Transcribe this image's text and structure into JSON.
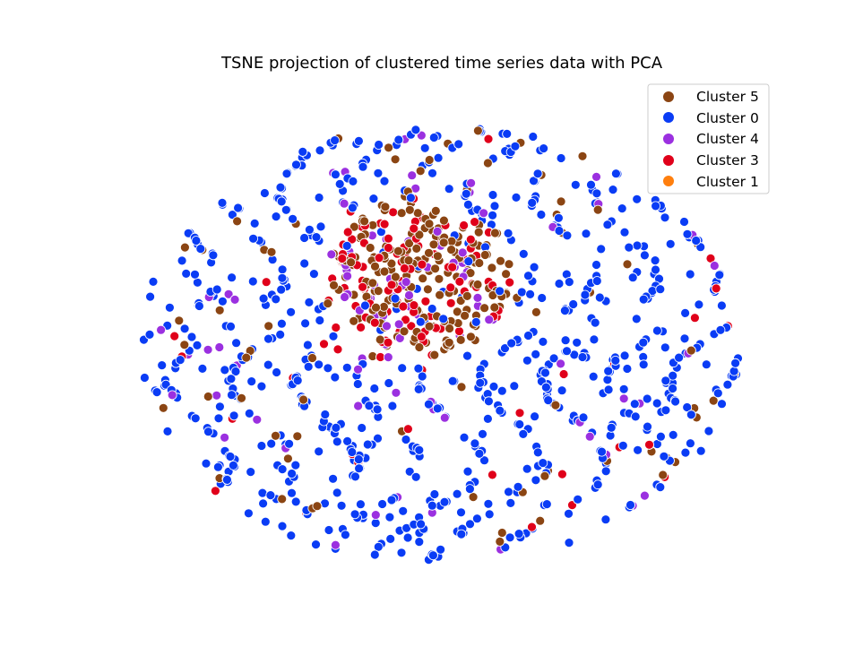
{
  "chart_data": {
    "type": "scatter",
    "title": "TSNE projection of clustered time series data with PCA",
    "xlabel": "",
    "ylabel": "",
    "axes_visible": false,
    "grid": false,
    "legend_position": "top-right",
    "marker_edge_color": "#ffffff",
    "series": [
      {
        "name": "Cluster 5",
        "color": "#8B4513"
      },
      {
        "name": "Cluster 0",
        "color": "#0A3CF5"
      },
      {
        "name": "Cluster 4",
        "color": "#9B30E0"
      },
      {
        "name": "Cluster 3",
        "color": "#E0001A"
      },
      {
        "name": "Cluster 1",
        "color": "#FF7F0E"
      }
    ]
  }
}
